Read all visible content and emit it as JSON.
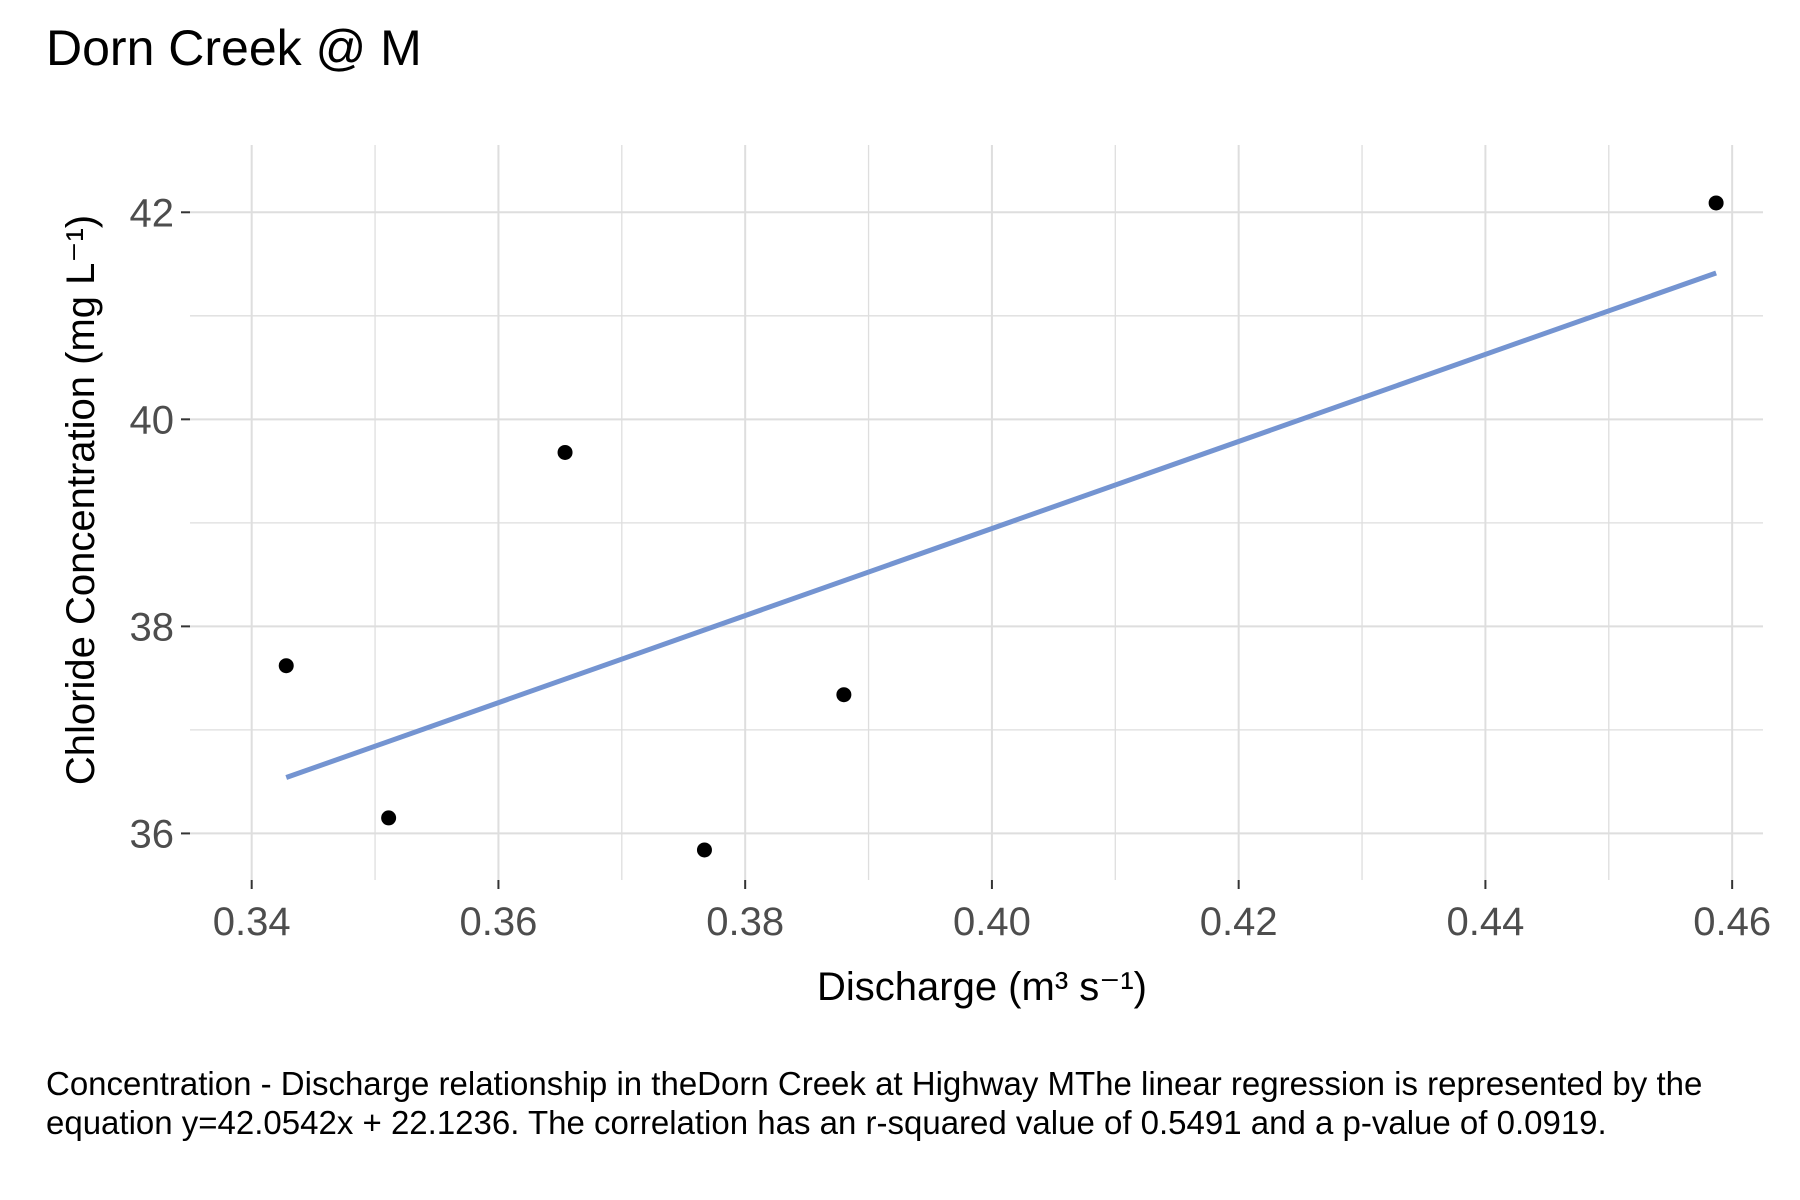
{
  "chart_data": {
    "type": "scatter",
    "title": "Dorn Creek @ M",
    "xlabel": "Discharge (m³ s⁻¹)",
    "ylabel": "Chloride Concentration (mg L⁻¹)",
    "xlim": [
      0.335,
      0.4625
    ],
    "ylim": [
      35.55,
      42.65
    ],
    "x_ticks": [
      0.34,
      0.36,
      0.38,
      0.4,
      0.42,
      0.44,
      0.46
    ],
    "x_tick_labels": [
      "0.34",
      "0.36",
      "0.38",
      "0.40",
      "0.42",
      "0.44",
      "0.46"
    ],
    "y_ticks": [
      36,
      38,
      40,
      42
    ],
    "y_tick_labels": [
      "36",
      "38",
      "40",
      "42"
    ],
    "grid": true,
    "points": [
      {
        "x": 0.3428,
        "y": 37.62
      },
      {
        "x": 0.3511,
        "y": 36.15
      },
      {
        "x": 0.3654,
        "y": 39.68
      },
      {
        "x": 0.3767,
        "y": 35.84
      },
      {
        "x": 0.388,
        "y": 37.34
      },
      {
        "x": 0.4587,
        "y": 42.09
      }
    ],
    "regression": {
      "slope": 42.0542,
      "intercept": 22.1236,
      "x_range": [
        0.3428,
        0.4587
      ]
    },
    "colors": {
      "points": "#000000",
      "line": "#7494d1",
      "grid": "#dedede",
      "axis_text": "#4d4d4d"
    }
  },
  "caption": "Concentration - Discharge relationship in theDorn Creek at Highway MThe linear regression is represented by the equation y=42.0542x + 22.1236. The correlation has an r-squared value of 0.5491 and a p-value of 0.0919."
}
